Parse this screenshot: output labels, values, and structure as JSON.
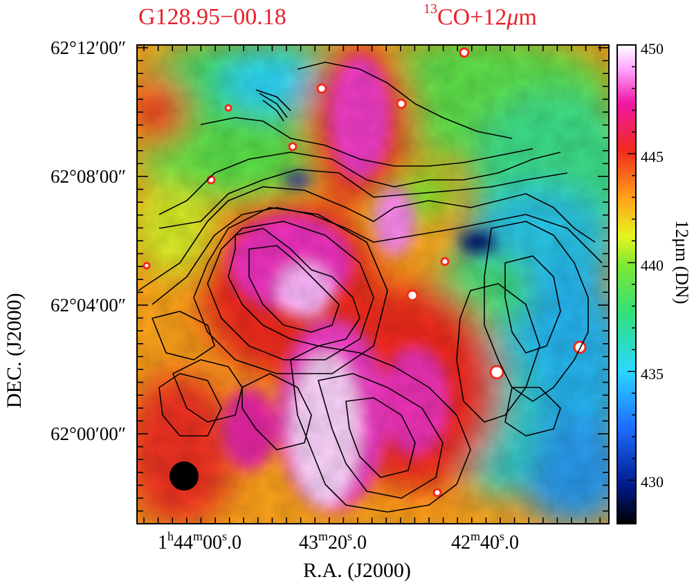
{
  "titles": {
    "left": "G128.95−00.18",
    "right_super": "13",
    "right_main": "CO+12",
    "right_mu": "μ",
    "right_end": "m"
  },
  "colors": {
    "title": "#e8202a",
    "contour": "#000000",
    "beam": "#000000"
  },
  "chart_data": {
    "type": "heatmap",
    "description_fields": {
      "image": "12 μm emission map with 13CO contours",
      "colorscale": "rainbow (black-blue-cyan-green-yellow-orange-red-magenta-white)"
    },
    "xlabel": "R.A. (J2000)",
    "ylabel": "DEC. (J2000)",
    "x_ticks": [
      {
        "h": "1",
        "hu": "h",
        "m": "44",
        "mu": "m",
        "s": "00",
        "frac": "0",
        "su": "s"
      },
      {
        "h": "",
        "hu": "",
        "m": "43",
        "mu": "m",
        "s": "20",
        "frac": "0",
        "su": "s"
      },
      {
        "h": "",
        "hu": "",
        "m": "42",
        "mu": "m",
        "s": "40",
        "frac": "0",
        "su": "s"
      }
    ],
    "y_ticks": [
      "62°12′00″",
      "62°08′00″",
      "62°04′00″",
      "62°00′00″"
    ],
    "colorbar": {
      "label": "12μm (DN)",
      "ticks": [
        450,
        445,
        440,
        435,
        430
      ],
      "range": [
        428,
        450
      ]
    }
  }
}
